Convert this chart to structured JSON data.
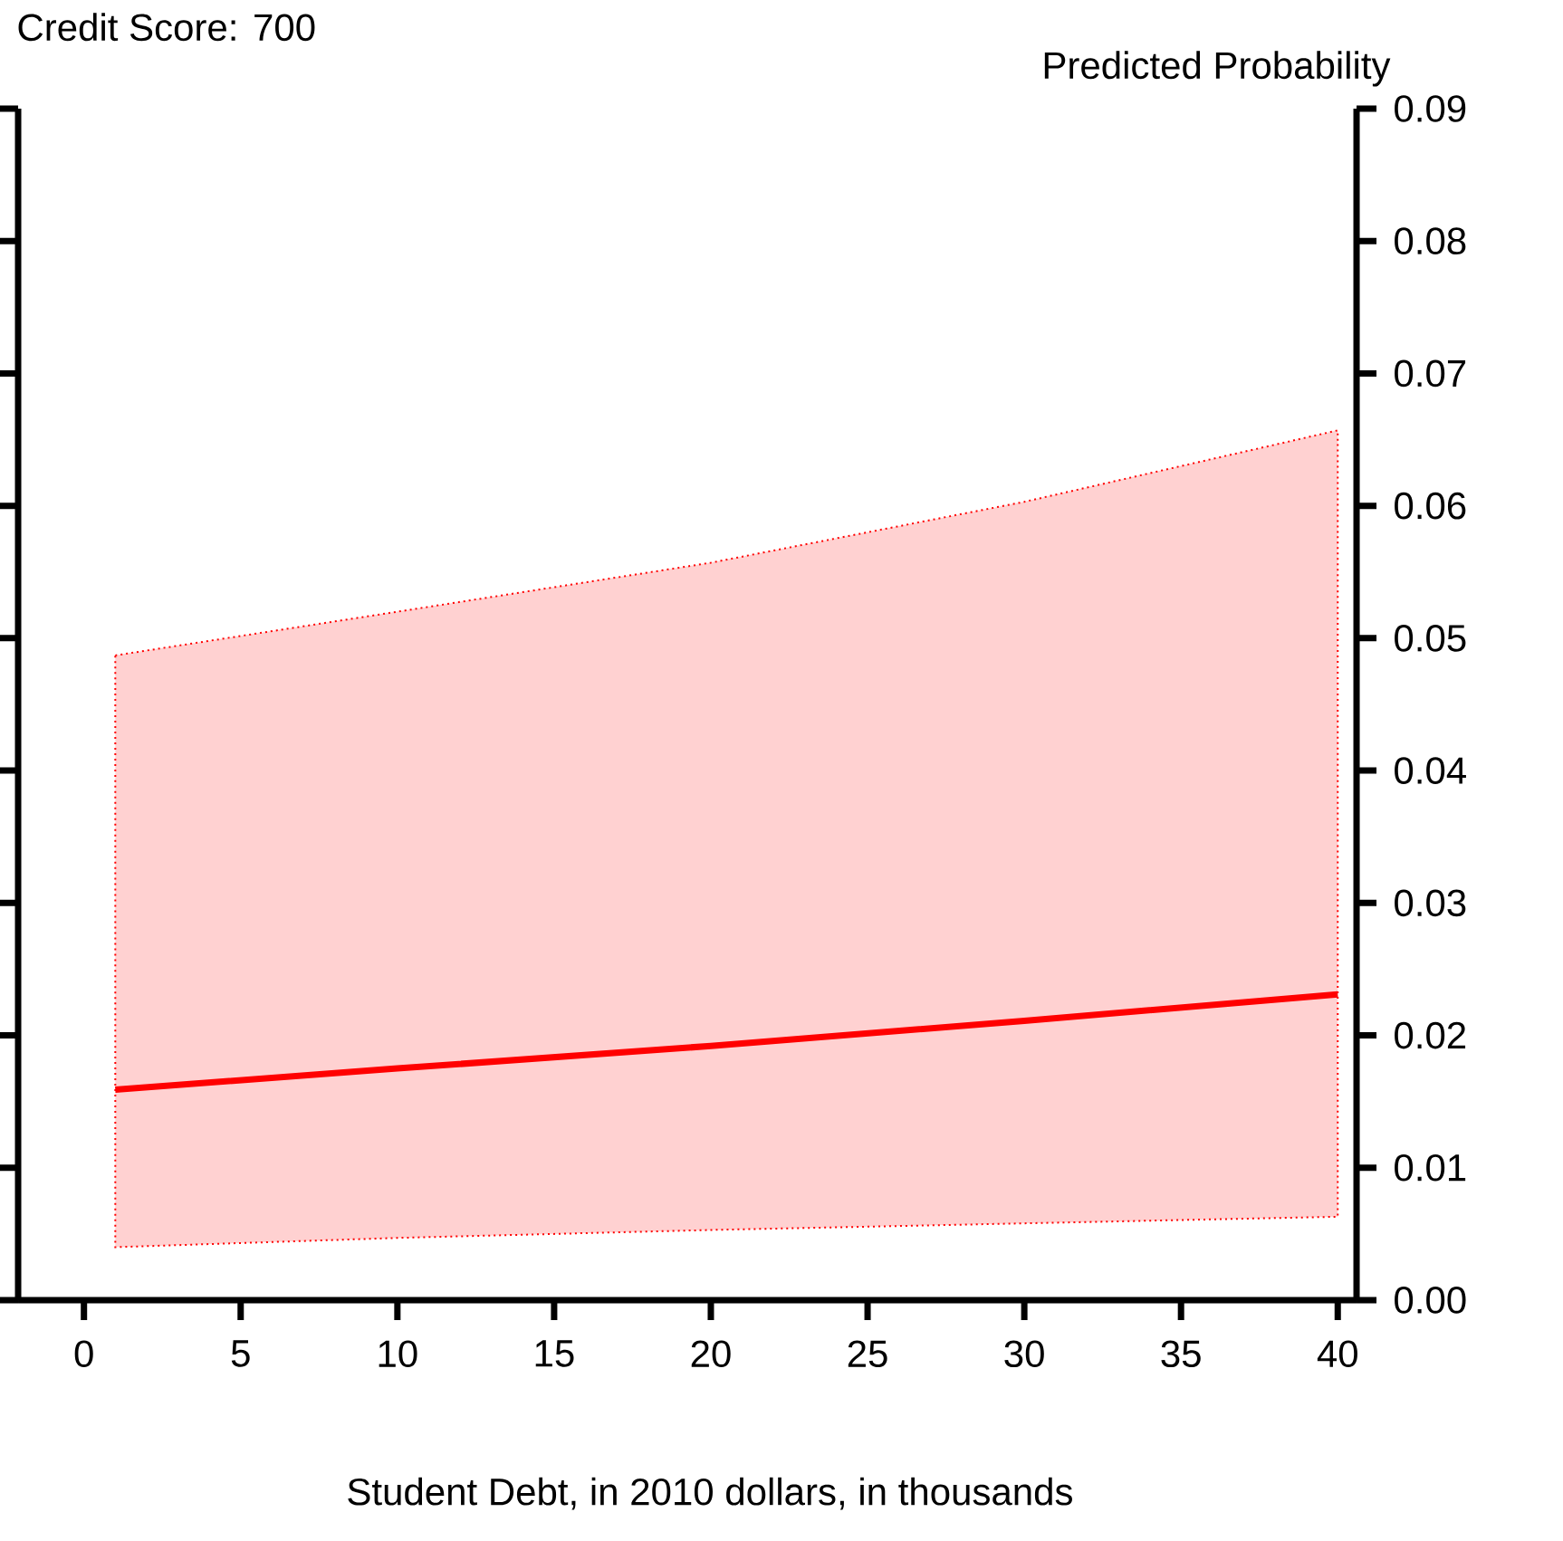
{
  "chart_data": {
    "type": "line",
    "title": "Credit Score: 700",
    "xlabel": "Student Debt, in 2010 dollars, in thousands",
    "ylabel": "Predicted Probability",
    "x": [
      1,
      10,
      20,
      30,
      40
    ],
    "series": [
      {
        "color": "#ff0000",
        "values": [
          0.0159,
          0.0175,
          0.0192,
          0.0211,
          0.0231
        ],
        "lower": [
          0.004,
          0.0047,
          0.0053,
          0.0058,
          0.0063
        ],
        "upper": [
          0.0487,
          0.052,
          0.0557,
          0.0603,
          0.0657
        ]
      }
    ],
    "xlim": [
      -2.1,
      40.6
    ],
    "ylim": [
      0,
      0.09
    ],
    "xticks": [
      0,
      5,
      10,
      15,
      20,
      25,
      30,
      35,
      40
    ],
    "yticks": [
      {
        "value": 0,
        "label": "0.00"
      },
      {
        "value": 0.01,
        "label": "0.01"
      },
      {
        "value": 0.02,
        "label": "0.02"
      },
      {
        "value": 0.03,
        "label": "0.03"
      },
      {
        "value": 0.04,
        "label": "0.04"
      },
      {
        "value": 0.05,
        "label": "0.05"
      },
      {
        "value": 0.06,
        "label": "0.06"
      },
      {
        "value": 0.07,
        "label": "0.07"
      },
      {
        "value": 0.08,
        "label": "0.08"
      },
      {
        "value": 0.09,
        "label": "0.09"
      }
    ],
    "grid": false
  }
}
